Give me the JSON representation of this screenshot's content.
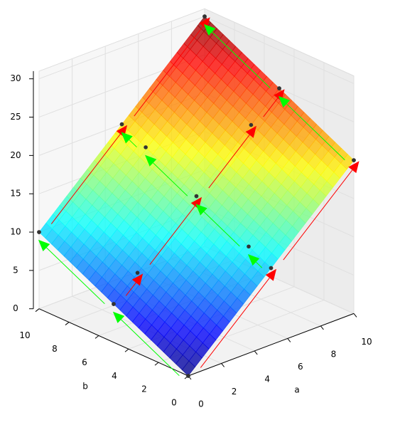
{
  "chart_data": {
    "type": "surface3d",
    "xlabel": "a",
    "ylabel": "b",
    "xlim": [
      0,
      10
    ],
    "ylim": [
      0,
      10
    ],
    "zlim": [
      0,
      31
    ],
    "xticks": [
      0,
      2,
      4,
      6,
      8,
      10
    ],
    "yticks": [
      0,
      2,
      4,
      6,
      8,
      10
    ],
    "zticks": [
      0,
      5,
      10,
      15,
      20,
      25,
      30
    ],
    "grid": true,
    "colormap": "jet",
    "surface": {
      "z": [
        [
          0,
          10
        ],
        [
          20,
          30
        ]
      ]
    },
    "red_color": "#ff0000",
    "green_color": "#00ff00",
    "point_color": "#333333",
    "red_paths": [
      [
        [
          0,
          0,
          0
        ],
        [
          5,
          0,
          10
        ],
        [
          10,
          0,
          20
        ]
      ],
      [
        [
          0,
          5,
          5
        ],
        [
          1.44,
          5,
          7.9
        ],
        [
          5,
          5,
          15
        ],
        [
          8.3,
          5,
          21.6
        ],
        [
          10,
          5,
          25
        ]
      ],
      [
        [
          0,
          10,
          10
        ],
        [
          5,
          10,
          20
        ],
        [
          10,
          10,
          30
        ]
      ]
    ],
    "green_paths": [
      [
        [
          10,
          0,
          20
        ],
        [
          10,
          5,
          25
        ],
        [
          10,
          10,
          30
        ]
      ],
      [
        [
          5,
          0,
          10
        ],
        [
          5,
          1.5,
          11.5
        ],
        [
          5,
          5,
          15
        ],
        [
          5,
          8.4,
          18.4
        ],
        [
          5,
          10,
          20
        ]
      ],
      [
        [
          0,
          0,
          0
        ],
        [
          0,
          5,
          5
        ],
        [
          0,
          10,
          10
        ]
      ]
    ]
  }
}
